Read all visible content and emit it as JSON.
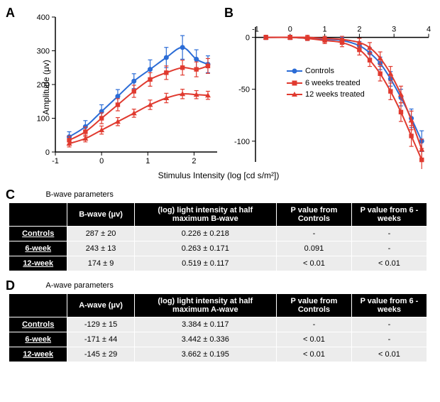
{
  "panelA": {
    "label": "A",
    "type": "line-scatter",
    "ylabel": "Amplitude (μv)",
    "xlim": [
      -1,
      2.5
    ],
    "ylim": [
      0,
      400
    ],
    "xticks": [
      -1,
      0,
      1,
      2
    ],
    "yticks": [
      0,
      100,
      200,
      300,
      400
    ],
    "colors": {
      "controls": "#2b6cd6",
      "w6": "#e03a2f",
      "w12": "#e03a2f"
    },
    "series": {
      "controls": {
        "marker": "circle",
        "color": "#2b6cd6",
        "x": [
          -0.7,
          -0.35,
          0,
          0.35,
          0.7,
          1.05,
          1.4,
          1.75,
          2.05,
          2.3
        ],
        "y": [
          45,
          75,
          120,
          165,
          210,
          245,
          280,
          310,
          275,
          260
        ],
        "err": [
          15,
          18,
          20,
          20,
          22,
          28,
          30,
          35,
          28,
          25
        ]
      },
      "w6": {
        "marker": "square",
        "color": "#e03a2f",
        "x": [
          -0.7,
          -0.35,
          0,
          0.35,
          0.7,
          1.05,
          1.4,
          1.75,
          2.05,
          2.3
        ],
        "y": [
          35,
          60,
          100,
          140,
          180,
          215,
          235,
          250,
          245,
          255
        ],
        "err": [
          12,
          14,
          16,
          18,
          18,
          20,
          20,
          22,
          22,
          22
        ]
      },
      "w12": {
        "marker": "triangle",
        "color": "#e03a2f",
        "x": [
          -0.7,
          -0.35,
          0,
          0.35,
          0.7,
          1.05,
          1.4,
          1.75,
          2.05,
          2.3
        ],
        "y": [
          25,
          40,
          65,
          90,
          115,
          140,
          160,
          172,
          170,
          168
        ],
        "err": [
          10,
          10,
          12,
          12,
          12,
          14,
          14,
          14,
          12,
          12
        ]
      }
    }
  },
  "panelB": {
    "label": "B",
    "type": "line-scatter",
    "xlim": [
      -1,
      4
    ],
    "ylim": [
      -120,
      10
    ],
    "xticks": [
      -1,
      0,
      1,
      2,
      3,
      4
    ],
    "yticks": [
      0,
      -50,
      -100
    ],
    "legend": {
      "controls": "Controls",
      "w6": "6 weeks treated",
      "w12": "12 weeks treated"
    },
    "series": {
      "controls": {
        "marker": "circle",
        "color": "#2b6cd6",
        "x": [
          -0.7,
          0,
          0.5,
          1.0,
          1.5,
          2.0,
          2.3,
          2.6,
          2.9,
          3.2,
          3.5,
          3.8
        ],
        "y": [
          0,
          0,
          -1,
          -2,
          -3,
          -8,
          -15,
          -25,
          -40,
          -58,
          -78,
          -100
        ],
        "err": [
          2,
          2,
          2,
          2,
          3,
          4,
          5,
          6,
          7,
          8,
          9,
          10
        ]
      },
      "w6": {
        "marker": "square",
        "color": "#e03a2f",
        "x": [
          -0.7,
          0,
          0.5,
          1.0,
          1.5,
          2.0,
          2.3,
          2.6,
          2.9,
          3.2,
          3.5,
          3.8
        ],
        "y": [
          0,
          0,
          -1,
          -3,
          -5,
          -12,
          -22,
          -35,
          -52,
          -72,
          -95,
          -118
        ],
        "err": [
          2,
          2,
          2,
          3,
          4,
          5,
          6,
          7,
          8,
          9,
          10,
          11
        ]
      },
      "w12": {
        "marker": "triangle",
        "color": "#e03a2f",
        "x": [
          -0.7,
          0,
          0.5,
          1.0,
          1.5,
          2.0,
          2.3,
          2.6,
          2.9,
          3.2,
          3.5,
          3.8
        ],
        "y": [
          0,
          0,
          0,
          -1,
          -2,
          -5,
          -10,
          -20,
          -35,
          -55,
          -80,
          -108
        ],
        "err": [
          2,
          2,
          2,
          2,
          3,
          4,
          5,
          6,
          7,
          8,
          9,
          10
        ]
      }
    }
  },
  "xlabel": "Stimulus Intensity (log [cd s/m²])",
  "tableC": {
    "label": "C",
    "title": "B-wave parameters",
    "columns": [
      "",
      "B-wave (μv)",
      "(log) light intensity at half maximum B-wave",
      "P value  from Controls",
      "P value from 6 -weeks"
    ],
    "rows": [
      [
        "Controls",
        "287 ± 20",
        "0.226 ± 0.218",
        "-",
        "-"
      ],
      [
        "6-week",
        "243 ± 13",
        "0.263 ± 0.171",
        "0.091",
        "-"
      ],
      [
        "12-week",
        "174 ± 9",
        "0.519 ± 0.117",
        "< 0.01",
        "< 0.01"
      ]
    ]
  },
  "tableD": {
    "label": "D",
    "title": "A-wave parameters",
    "columns": [
      "",
      "A-wave (μv)",
      "(log) light intensity at half maximum A-wave",
      "P value  from Controls",
      "P value from 6 -weeks"
    ],
    "rows": [
      [
        "Controls",
        "-129 ± 15",
        "3.384 ± 0.117",
        "-",
        "-"
      ],
      [
        "6-week",
        "-171 ± 44",
        "3.442 ± 0.336",
        "< 0.01",
        "-"
      ],
      [
        "12-week",
        "-145 ± 29",
        "3.662 ± 0.195",
        "< 0.01",
        "< 0.01"
      ]
    ]
  }
}
